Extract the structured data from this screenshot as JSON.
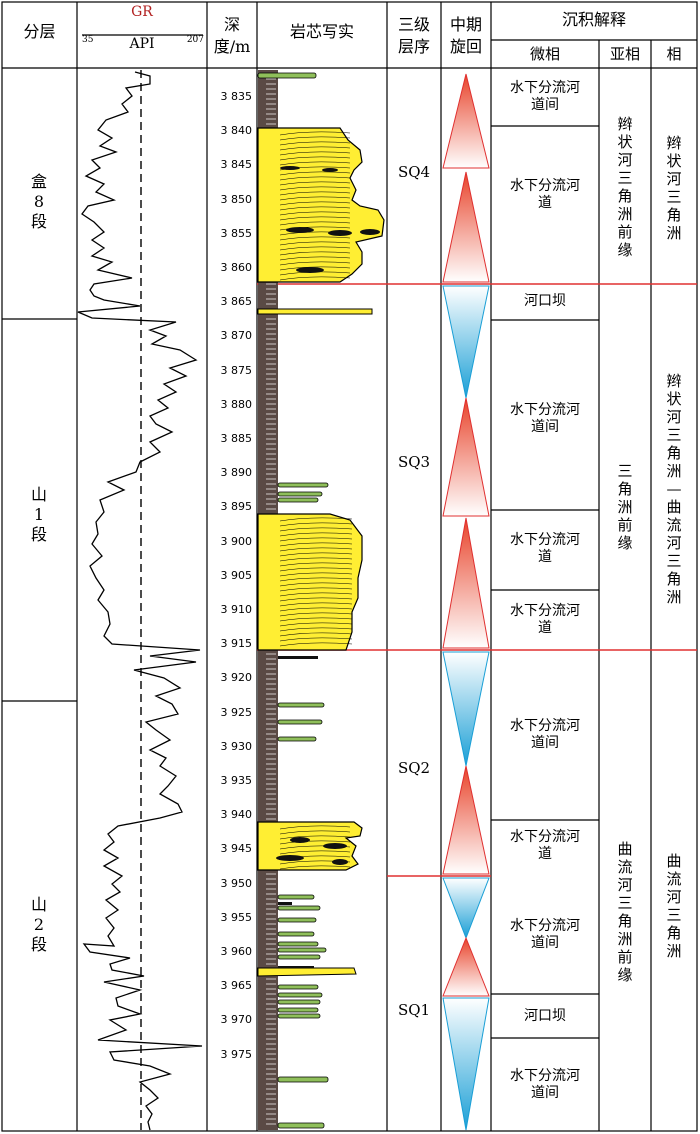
{
  "headers": {
    "layer": "分层",
    "gr_label": "GR",
    "api_label": "API",
    "gr_min": "35",
    "gr_max": "207",
    "depth": "深度/m",
    "core": "岩芯写实",
    "sequence": "三级层序",
    "cycle": "中期旋回",
    "interpretation": "沉积解释",
    "microfacies": "微相",
    "subfacies": "亚相",
    "facies": "相"
  },
  "layers": [
    "盒8段",
    "山1段",
    "山2段"
  ],
  "depth_ticks": [
    "3 835",
    "3 840",
    "3 845",
    "3 850",
    "3 855",
    "3 860",
    "3 865",
    "3 870",
    "3 875",
    "3 880",
    "3 885",
    "3 890",
    "3 895",
    "3 900",
    "3 905",
    "3 910",
    "3 915",
    "3 920",
    "3 925",
    "3 930",
    "3 935",
    "3 940",
    "3 945",
    "3 950",
    "3 955",
    "3 960",
    "3 965",
    "3 970",
    "3 975"
  ],
  "sequences": [
    "SQ4",
    "SQ3",
    "SQ2",
    "SQ1"
  ],
  "microfacies": [
    "水下分流河道间",
    "水下分流河道",
    "河口坝",
    "水下分流河道间",
    "水下分流河道",
    "水下分流河道",
    "水下分流河道间",
    "水下分流河道",
    "水下分流河道间",
    "河口坝",
    "水下分流河道间"
  ],
  "subfacies": [
    "辫状河三角洲前缘",
    "三角洲前缘",
    "曲流河三角洲前缘"
  ],
  "facies": [
    "辫状河三角洲",
    "辫状河三角洲—曲流河三角洲",
    "曲流河三角洲"
  ],
  "colors": {
    "gr_title": "#b22222",
    "sandstone": "#ffee33",
    "siltstone": "#8fbf5a",
    "mudstone": "#5a4a45",
    "boundary": "#e03030",
    "rise": "#e8432a",
    "fall": "#1a9fd6"
  }
}
